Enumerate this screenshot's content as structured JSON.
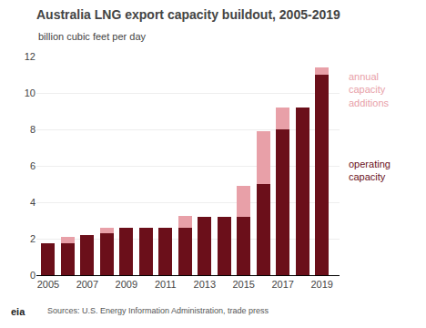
{
  "chart_data": {
    "type": "bar",
    "title": "Australia LNG export capacity buildout, 2005-2019",
    "subtitle": "billion cubic feet per day",
    "source": "Sources: U.S. Energy Information Administration, trade press",
    "annotations": [
      "eia"
    ],
    "x": [
      2005,
      2006,
      2007,
      2008,
      2009,
      2010,
      2011,
      2012,
      2013,
      2014,
      2015,
      2016,
      2017,
      2018,
      2019
    ],
    "series": [
      {
        "name": "operating\ncapacity",
        "color": "#6B0F1A",
        "values": [
          1.75,
          1.75,
          2.2,
          2.3,
          2.6,
          2.6,
          2.6,
          2.6,
          3.2,
          3.2,
          3.2,
          5.0,
          8.0,
          9.2,
          11.0
        ]
      },
      {
        "name": "annual\ncapacity\nadditions",
        "color": "#E8A0A8",
        "values": [
          0.0,
          0.35,
          0.0,
          0.3,
          0.0,
          0.0,
          0.0,
          0.65,
          0.0,
          0.0,
          1.7,
          2.9,
          1.2,
          0.0,
          0.4
        ]
      }
    ],
    "stacked": true,
    "xlim": [
      2004.4,
      2019.9
    ],
    "xticks": [
      2005,
      2007,
      2009,
      2011,
      2013,
      2015,
      2017,
      2019
    ],
    "ylim": [
      0,
      12
    ],
    "yticks": [
      0,
      2,
      4,
      6,
      8,
      10,
      12
    ],
    "grid": true
  }
}
